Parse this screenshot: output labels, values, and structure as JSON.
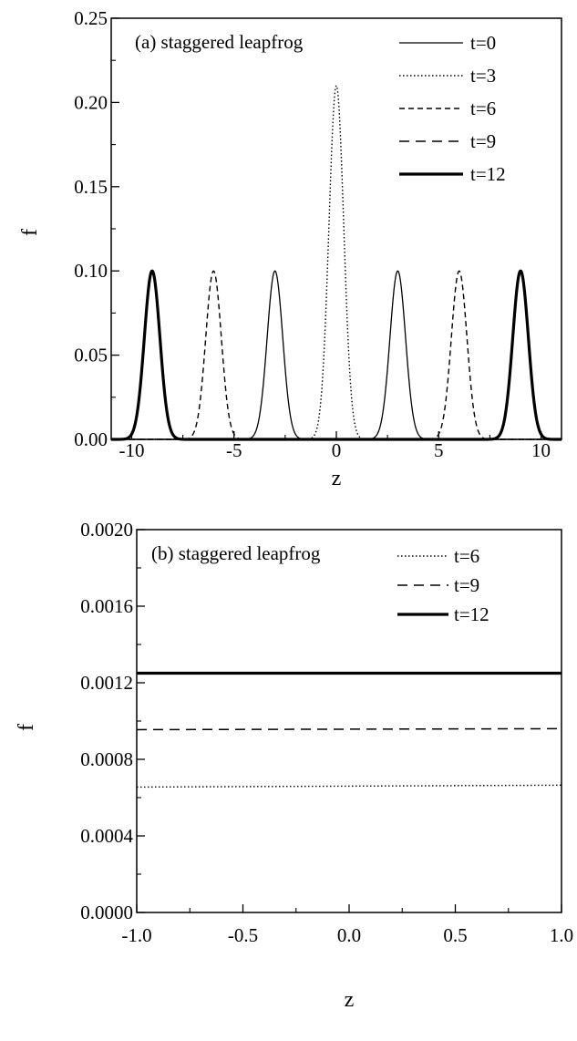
{
  "chart_data": [
    {
      "type": "line",
      "title": "(a) staggered leapfrog",
      "xlabel": "z",
      "ylabel": "f",
      "xlim": [
        -11,
        11
      ],
      "ylim": [
        0,
        0.25
      ],
      "xticks": [
        -10,
        -5,
        0,
        5,
        10
      ],
      "xtick_labels": [
        "-10",
        "-5",
        "0",
        "5",
        "10"
      ],
      "yticks": [
        0,
        0.05,
        0.1,
        0.15,
        0.2,
        0.25
      ],
      "ytick_labels": [
        "0.00",
        "0.05",
        "0.10",
        "0.15",
        "0.20",
        "0.25"
      ],
      "grid": false,
      "legend_position": "top-right",
      "series": [
        {
          "name": "t=0",
          "style": "solid",
          "peaks": [
            {
              "center": -3,
              "height": 0.1,
              "sigma": 0.38
            },
            {
              "center": 3,
              "height": 0.1,
              "sigma": 0.38
            }
          ]
        },
        {
          "name": "t=3",
          "style": "dotted",
          "peaks": [
            {
              "center": 0,
              "height": 0.21,
              "sigma": 0.36
            }
          ]
        },
        {
          "name": "t=6",
          "style": "dashed",
          "peaks": [
            {
              "center": -6,
              "height": 0.1,
              "sigma": 0.38
            },
            {
              "center": 6,
              "height": 0.1,
              "sigma": 0.38
            }
          ]
        },
        {
          "name": "t=9",
          "style": "long-dashed",
          "peaks": [
            {
              "center": -9,
              "height": 0.1,
              "sigma": 0.38
            },
            {
              "center": 9,
              "height": 0.1,
              "sigma": 0.38
            }
          ]
        },
        {
          "name": "t=12",
          "style": "thick-solid",
          "peaks": [
            {
              "center": -9,
              "height": 0.1,
              "sigma": 0.38
            },
            {
              "center": 9,
              "height": 0.1,
              "sigma": 0.38
            }
          ]
        }
      ]
    },
    {
      "type": "line",
      "title": "(b) staggered leapfrog",
      "xlabel": "z",
      "ylabel": "f",
      "xlim": [
        -1,
        1
      ],
      "ylim": [
        0,
        0.002
      ],
      "xticks": [
        -1,
        -0.5,
        0,
        0.5,
        1
      ],
      "xtick_labels": [
        "-1.0",
        "-0.5",
        "0.0",
        "0.5",
        "1.0"
      ],
      "yticks": [
        0,
        0.0004,
        0.0008,
        0.0012,
        0.0016,
        0.002
      ],
      "ytick_labels": [
        "0.0000",
        "0.0004",
        "0.0008",
        "0.0012",
        "0.0016",
        "0.0020"
      ],
      "grid": false,
      "legend_position": "top-right",
      "series": [
        {
          "name": "t=6",
          "style": "dotted",
          "x": [
            -1,
            1
          ],
          "y": [
            0.000655,
            0.000665
          ]
        },
        {
          "name": "t=9",
          "style": "long-dashed",
          "x": [
            -1,
            1
          ],
          "y": [
            0.000955,
            0.00096
          ]
        },
        {
          "name": "t=12",
          "style": "thick-solid",
          "x": [
            -1,
            1
          ],
          "y": [
            0.00125,
            0.00125
          ]
        }
      ]
    }
  ]
}
